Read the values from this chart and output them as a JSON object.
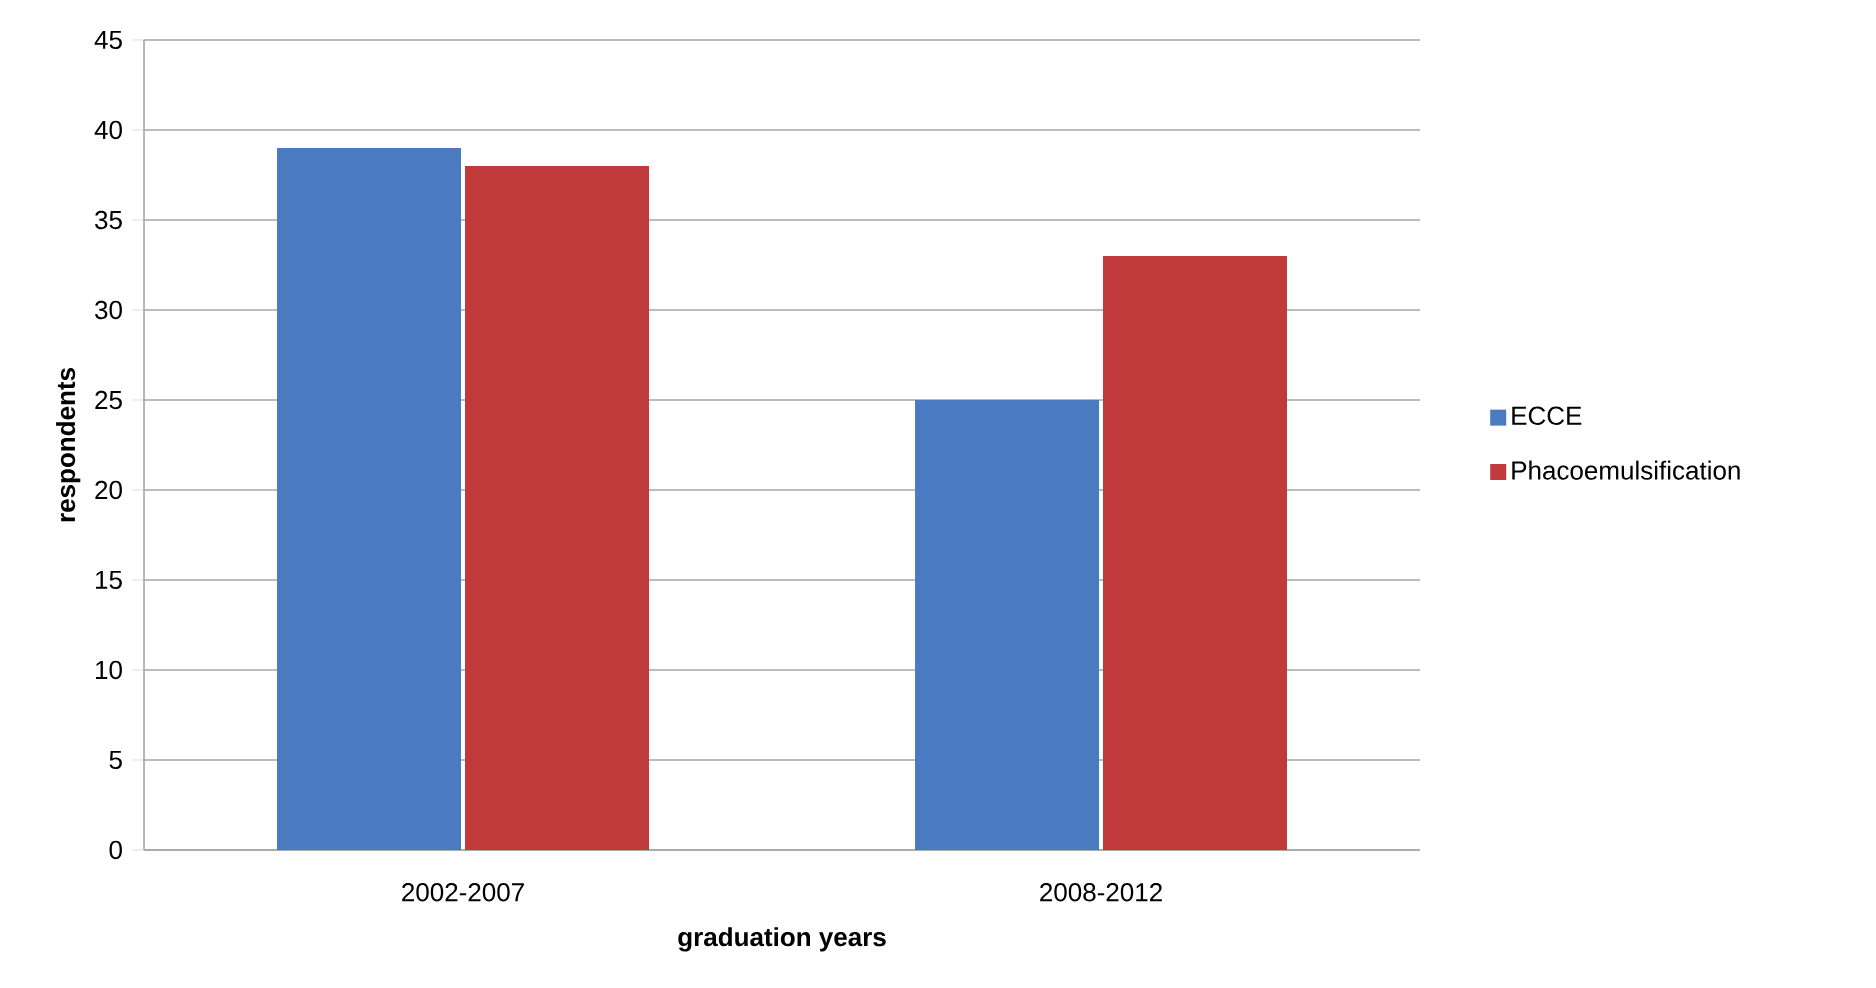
{
  "chart_data": {
    "type": "bar",
    "xlabel": "graduation years",
    "ylabel": "respondents",
    "categories": [
      "2002-2007",
      "2008-2012"
    ],
    "series": [
      {
        "name": "ECCE",
        "color": "#4a7ac0",
        "values": [
          39,
          25
        ]
      },
      {
        "name": "Phacoemulsification",
        "color": "#c0393b",
        "values": [
          38,
          33
        ]
      }
    ],
    "ylim": [
      0,
      45
    ],
    "yticks": [
      0,
      5,
      10,
      15,
      20,
      25,
      30,
      35,
      40,
      45
    ],
    "grid": "y",
    "legend": "right"
  }
}
